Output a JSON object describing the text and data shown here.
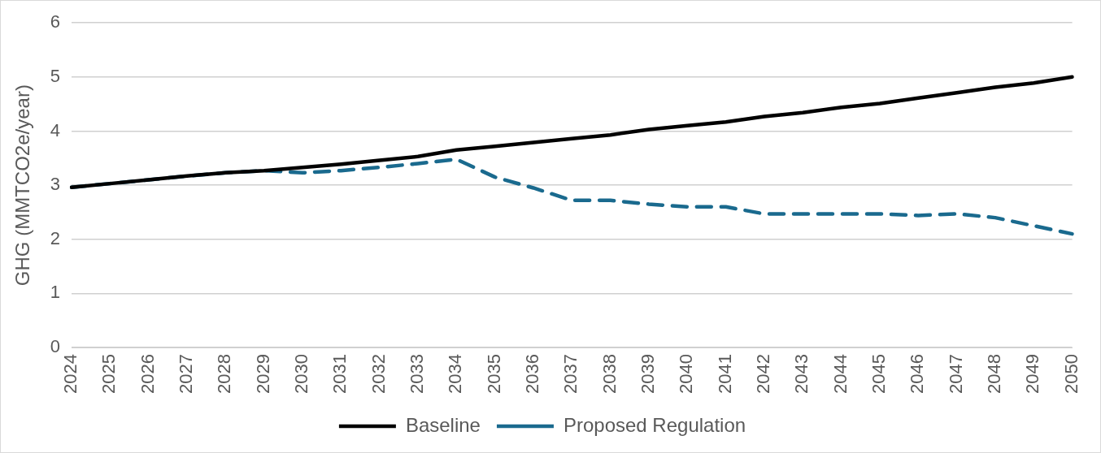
{
  "chart_data": {
    "type": "line",
    "ylabel": "GHG (MMTCO2e/year)",
    "categories": [
      "2024",
      "2025",
      "2026",
      "2027",
      "2028",
      "2029",
      "2030",
      "2031",
      "2032",
      "2033",
      "2034",
      "2035",
      "2036",
      "2037",
      "2038",
      "2039",
      "2040",
      "2041",
      "2042",
      "2043",
      "2044",
      "2045",
      "2046",
      "2047",
      "2048",
      "2049",
      "2050"
    ],
    "series": [
      {
        "name": "Baseline",
        "color": "#000000",
        "line_style": "solid",
        "values": [
          2.96,
          3.03,
          3.1,
          3.17,
          3.23,
          3.27,
          3.33,
          3.39,
          3.46,
          3.53,
          3.65,
          3.72,
          3.79,
          3.86,
          3.93,
          4.03,
          4.1,
          4.17,
          4.27,
          4.34,
          4.44,
          4.51,
          4.61,
          4.71,
          4.81,
          4.89,
          5.0
        ]
      },
      {
        "name": "Proposed Regulation",
        "color": "#1a6a8e",
        "line_style": "dashed",
        "values": [
          2.96,
          3.03,
          3.1,
          3.17,
          3.23,
          3.27,
          3.23,
          3.27,
          3.33,
          3.4,
          3.48,
          3.15,
          2.95,
          2.72,
          2.72,
          2.65,
          2.6,
          2.6,
          2.47,
          2.47,
          2.47,
          2.47,
          2.44,
          2.47,
          2.4,
          2.25,
          2.1
        ]
      }
    ],
    "ylim": [
      0,
      6
    ],
    "yticks": [
      0,
      1,
      2,
      3,
      4,
      5,
      6
    ],
    "grid": "y",
    "legend": "bottom",
    "marker": "none"
  }
}
